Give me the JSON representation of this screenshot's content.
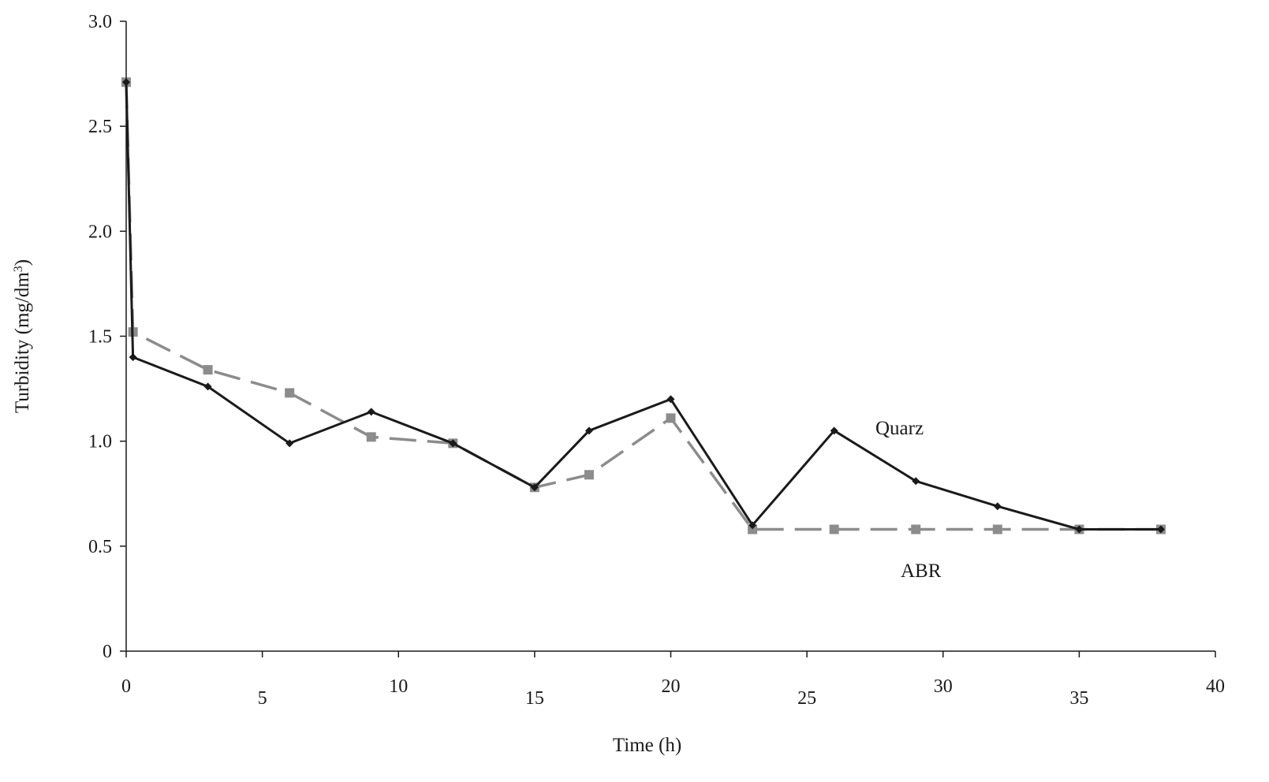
{
  "chart_data": {
    "type": "line",
    "xlabel": "Time (h)",
    "ylabel_main": "Turbidity (mg/dm",
    "ylabel_sup": "3",
    "ylabel_close": ")",
    "xlim": [
      0,
      40
    ],
    "ylim": [
      0,
      3.0
    ],
    "x_ticks": [
      0,
      5,
      10,
      15,
      20,
      25,
      30,
      35,
      40
    ],
    "x_tick_labels": [
      "0",
      "5",
      "10",
      "15",
      "20",
      "25",
      "30",
      "35",
      "40"
    ],
    "y_ticks": [
      0,
      0.5,
      1.0,
      1.5,
      2.0,
      2.5,
      3.0
    ],
    "y_tick_labels": [
      "0",
      "0.5",
      "1.0",
      "1.5",
      "2.0",
      "2.5",
      "3.0"
    ],
    "grid": false,
    "legend": "inline labels",
    "series": [
      {
        "name": "Quarz",
        "color": "#1a1a1a",
        "dash": "solid",
        "marker": "diamond",
        "x": [
          0,
          0.25,
          3,
          6,
          9,
          12,
          15,
          17,
          20,
          23,
          26,
          29,
          32,
          35,
          38
        ],
        "y": [
          2.71,
          1.4,
          1.26,
          0.99,
          1.14,
          0.99,
          0.78,
          1.05,
          1.2,
          0.6,
          1.05,
          0.81,
          0.69,
          0.58,
          0.58
        ]
      },
      {
        "name": "ABR",
        "color": "#8c8c8c",
        "dash": "dashed",
        "marker": "square",
        "x": [
          0,
          0.25,
          3,
          6,
          9,
          12,
          15,
          17,
          20,
          23,
          26,
          29,
          32,
          35,
          38
        ],
        "y": [
          2.71,
          1.52,
          1.34,
          1.23,
          1.02,
          0.99,
          0.78,
          0.84,
          1.11,
          0.58,
          0.58,
          0.58,
          0.58,
          0.58,
          0.58
        ]
      }
    ]
  }
}
